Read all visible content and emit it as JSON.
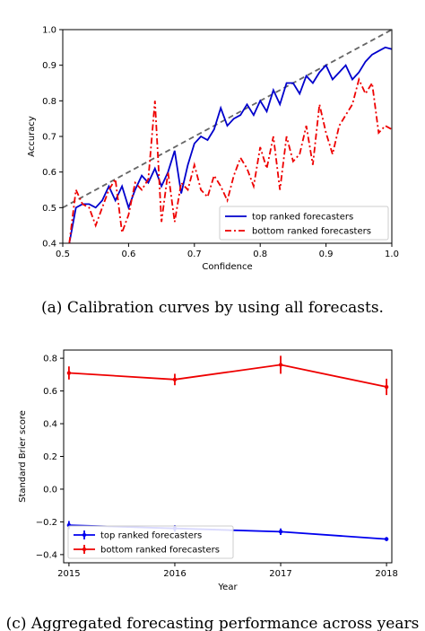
{
  "chart_data": [
    {
      "type": "line",
      "caption": "(a)  Calibration curves by using all forecasts.",
      "xlabel": "Confidence",
      "ylabel": "Accuracy",
      "xlim": [
        0.5,
        1.0
      ],
      "ylim": [
        0.4,
        1.0
      ],
      "xticks": [
        "0.5",
        "0.6",
        "0.7",
        "0.8",
        "0.9",
        "1.0"
      ],
      "yticks": [
        "0.4",
        "0.5",
        "0.6",
        "0.7",
        "0.8",
        "0.9",
        "1.0"
      ],
      "legend_position": "bottom-right",
      "diagonal_reference": {
        "style": "dashed",
        "color": "#666666",
        "points": [
          [
            0.5,
            0.5
          ],
          [
            1.0,
            1.0
          ]
        ]
      },
      "series": [
        {
          "name": "top ranked forecasters",
          "color": "#0000cc",
          "style": "solid",
          "x": [
            0.51,
            0.52,
            0.53,
            0.54,
            0.55,
            0.56,
            0.57,
            0.58,
            0.59,
            0.6,
            0.61,
            0.62,
            0.63,
            0.64,
            0.65,
            0.66,
            0.67,
            0.68,
            0.69,
            0.7,
            0.71,
            0.72,
            0.73,
            0.74,
            0.75,
            0.76,
            0.77,
            0.78,
            0.79,
            0.8,
            0.81,
            0.82,
            0.83,
            0.84,
            0.85,
            0.86,
            0.87,
            0.88,
            0.89,
            0.9,
            0.91,
            0.92,
            0.93,
            0.94,
            0.95,
            0.96,
            0.97,
            0.98,
            0.99,
            1.0
          ],
          "values": [
            0.4,
            0.5,
            0.51,
            0.51,
            0.5,
            0.52,
            0.56,
            0.52,
            0.56,
            0.5,
            0.55,
            0.59,
            0.57,
            0.61,
            0.56,
            0.6,
            0.66,
            0.54,
            0.62,
            0.68,
            0.7,
            0.69,
            0.72,
            0.78,
            0.73,
            0.75,
            0.76,
            0.79,
            0.76,
            0.8,
            0.77,
            0.83,
            0.79,
            0.85,
            0.85,
            0.82,
            0.87,
            0.85,
            0.88,
            0.9,
            0.86,
            0.88,
            0.9,
            0.86,
            0.88,
            0.91,
            0.93,
            0.94,
            0.95,
            0.945
          ]
        },
        {
          "name": "bottom ranked forecasters",
          "color": "#ee0000",
          "style": "dashdot",
          "x": [
            0.51,
            0.52,
            0.53,
            0.54,
            0.55,
            0.56,
            0.57,
            0.58,
            0.59,
            0.6,
            0.61,
            0.62,
            0.63,
            0.64,
            0.65,
            0.66,
            0.67,
            0.68,
            0.69,
            0.7,
            0.71,
            0.72,
            0.73,
            0.74,
            0.75,
            0.76,
            0.77,
            0.78,
            0.79,
            0.8,
            0.81,
            0.82,
            0.83,
            0.84,
            0.85,
            0.86,
            0.87,
            0.88,
            0.89,
            0.9,
            0.91,
            0.92,
            0.93,
            0.94,
            0.95,
            0.96,
            0.97,
            0.98,
            0.99,
            1.0
          ],
          "values": [
            0.4,
            0.55,
            0.51,
            0.5,
            0.45,
            0.5,
            0.55,
            0.58,
            0.43,
            0.48,
            0.57,
            0.55,
            0.58,
            0.8,
            0.46,
            0.6,
            0.46,
            0.57,
            0.55,
            0.62,
            0.55,
            0.53,
            0.59,
            0.56,
            0.52,
            0.59,
            0.64,
            0.61,
            0.56,
            0.67,
            0.61,
            0.7,
            0.55,
            0.7,
            0.63,
            0.65,
            0.73,
            0.62,
            0.79,
            0.71,
            0.65,
            0.73,
            0.76,
            0.79,
            0.86,
            0.82,
            0.85,
            0.71,
            0.73,
            0.72
          ]
        }
      ]
    },
    {
      "type": "line",
      "caption": "(c)  Aggregated forecasting performance across years",
      "xlabel": "Year",
      "ylabel": "Standard Brier score",
      "xlim": [
        2014.95,
        2018.05
      ],
      "ylim": [
        -0.45,
        0.85
      ],
      "xticks": [
        "2015",
        "2016",
        "2017",
        "2018"
      ],
      "yticks": [
        "−0.4",
        "−0.2",
        "0.0",
        "0.2",
        "0.4",
        "0.6",
        "0.8"
      ],
      "legend_position": "bottom-left",
      "series": [
        {
          "name": "top ranked forecasters",
          "color": "#0000ee",
          "x": [
            2015,
            2016,
            2017,
            2018
          ],
          "values": [
            -0.22,
            -0.24,
            -0.26,
            -0.305
          ],
          "errors": [
            0.025,
            0.02,
            0.02,
            0.012
          ]
        },
        {
          "name": "bottom ranked forecasters",
          "color": "#ee0000",
          "x": [
            2015,
            2016,
            2017,
            2018
          ],
          "values": [
            0.71,
            0.67,
            0.76,
            0.625
          ],
          "errors": [
            0.04,
            0.035,
            0.055,
            0.05
          ]
        }
      ]
    }
  ]
}
